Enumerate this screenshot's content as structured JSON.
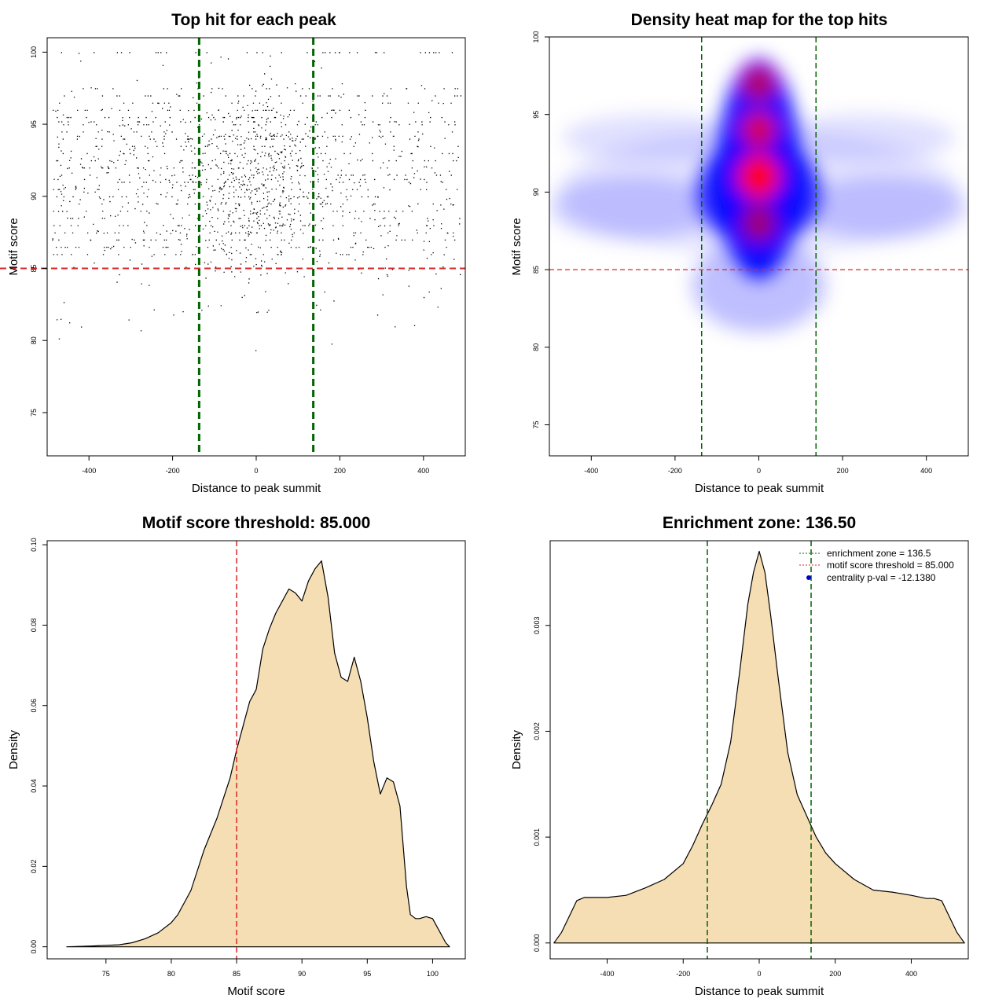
{
  "colors": {
    "threshold": "#d62728",
    "zone": "#006400",
    "fill": "#f5deb3",
    "heat_low": "#ffffff",
    "heat_mid": "#0000ff",
    "heat_high": "#ff0000",
    "centrality_point": "#0000cc"
  },
  "chart_data": [
    {
      "id": "scatter",
      "type": "scatter",
      "title": "Top hit for each peak",
      "xlabel": "Distance to peak summit",
      "ylabel": "Motif score",
      "xlim": [
        -500,
        500
      ],
      "ylim": [
        72,
        101
      ],
      "xticks": [
        -400,
        -200,
        0,
        200,
        400
      ],
      "yticks": [
        75,
        80,
        85,
        90,
        95,
        100
      ],
      "threshold": 85,
      "zone": 136.5,
      "point_estimate": "dense cloud of several thousand hits, x spread uniformly -490..490 with a central concentration, y concentrated 85-97 with a central peak near 91",
      "grid": false
    },
    {
      "id": "heatmap",
      "type": "heatmap",
      "title": "Density heat map for the top hits",
      "xlabel": "Distance to peak summit",
      "ylabel": "Motif score",
      "xlim": [
        -500,
        500
      ],
      "ylim": [
        73,
        100
      ],
      "xticks": [
        -400,
        -200,
        0,
        200,
        400
      ],
      "yticks": [
        75,
        80,
        85,
        90,
        95,
        100
      ],
      "threshold": 85,
      "zone": 136.5,
      "hotspots": [
        {
          "x": 0,
          "y": 91,
          "level": 1.0
        },
        {
          "x": 0,
          "y": 94,
          "level": 0.85
        },
        {
          "x": 0,
          "y": 97,
          "level": 0.7
        },
        {
          "x": 0,
          "y": 88,
          "level": 0.65
        }
      ],
      "grid": false
    },
    {
      "id": "score-density",
      "type": "area",
      "title": "Motif score threshold: 85.000",
      "xlabel": "Motif score",
      "ylabel": "Density",
      "xlim": [
        70.5,
        102.5
      ],
      "ylim": [
        -0.003,
        0.101
      ],
      "xticks": [
        75,
        80,
        85,
        90,
        95,
        100
      ],
      "yticks": [
        0.0,
        0.02,
        0.04,
        0.06,
        0.08,
        0.1
      ],
      "ytick_labels": [
        "0.00",
        "0.02",
        "0.04",
        "0.06",
        "0.08",
        "0.10"
      ],
      "threshold": 85,
      "x": [
        72,
        74,
        76,
        77,
        78,
        79,
        80,
        80.5,
        81,
        81.5,
        82,
        82.5,
        83,
        83.5,
        84,
        84.5,
        85,
        85.5,
        86,
        86.5,
        87,
        87.5,
        88,
        88.5,
        89,
        89.5,
        90,
        90.5,
        91,
        91.5,
        92,
        92.5,
        93,
        93.5,
        94,
        94.5,
        95,
        95.5,
        96,
        96.5,
        97,
        97.5,
        98,
        98.3,
        98.7,
        99,
        99.5,
        100,
        100.5,
        101,
        101.3
      ],
      "y": [
        0,
        0.0002,
        0.0005,
        0.001,
        0.002,
        0.0035,
        0.006,
        0.008,
        0.011,
        0.014,
        0.019,
        0.024,
        0.028,
        0.032,
        0.037,
        0.042,
        0.049,
        0.055,
        0.061,
        0.064,
        0.074,
        0.079,
        0.083,
        0.086,
        0.089,
        0.088,
        0.086,
        0.091,
        0.094,
        0.096,
        0.087,
        0.073,
        0.067,
        0.066,
        0.072,
        0.066,
        0.057,
        0.046,
        0.038,
        0.042,
        0.041,
        0.035,
        0.015,
        0.008,
        0.007,
        0.007,
        0.0075,
        0.007,
        0.004,
        0.001,
        0
      ],
      "grid": false
    },
    {
      "id": "distance-density",
      "type": "area",
      "title": "Enrichment zone: 136.50",
      "xlabel": "Distance to peak summit",
      "ylabel": "Density",
      "xlim": [
        -550,
        550
      ],
      "ylim": [
        -0.00015,
        0.0038
      ],
      "xticks": [
        -400,
        -200,
        0,
        200,
        400
      ],
      "yticks": [
        0.0,
        0.001,
        0.002,
        0.003
      ],
      "ytick_labels": [
        "0.000",
        "0.001",
        "0.002",
        "0.003"
      ],
      "zone": 136.5,
      "x": [
        -540,
        -520,
        -500,
        -480,
        -460,
        -440,
        -420,
        -400,
        -350,
        -300,
        -250,
        -200,
        -175,
        -150,
        -125,
        -100,
        -75,
        -50,
        -30,
        -15,
        0,
        15,
        30,
        50,
        75,
        100,
        125,
        150,
        175,
        200,
        250,
        300,
        350,
        400,
        440,
        460,
        480,
        500,
        520,
        540
      ],
      "y": [
        0,
        0.0001,
        0.00025,
        0.0004,
        0.00043,
        0.00043,
        0.00043,
        0.00043,
        0.00045,
        0.00052,
        0.0006,
        0.00075,
        0.00092,
        0.00112,
        0.0013,
        0.0015,
        0.0019,
        0.0026,
        0.0032,
        0.0035,
        0.0037,
        0.0035,
        0.0031,
        0.0025,
        0.0018,
        0.0014,
        0.0012,
        0.001,
        0.00085,
        0.00075,
        0.0006,
        0.0005,
        0.00048,
        0.00045,
        0.00042,
        0.00042,
        0.0004,
        0.00025,
        0.0001,
        0
      ],
      "legend": [
        {
          "label": "enrichment zone = 136.5",
          "style": "zone-line"
        },
        {
          "label": "motif score threshold = 85.000",
          "style": "threshold-line"
        },
        {
          "label": "centrality p-val = -12.1380",
          "style": "point"
        }
      ],
      "legend_position": "top-right",
      "grid": false
    }
  ]
}
